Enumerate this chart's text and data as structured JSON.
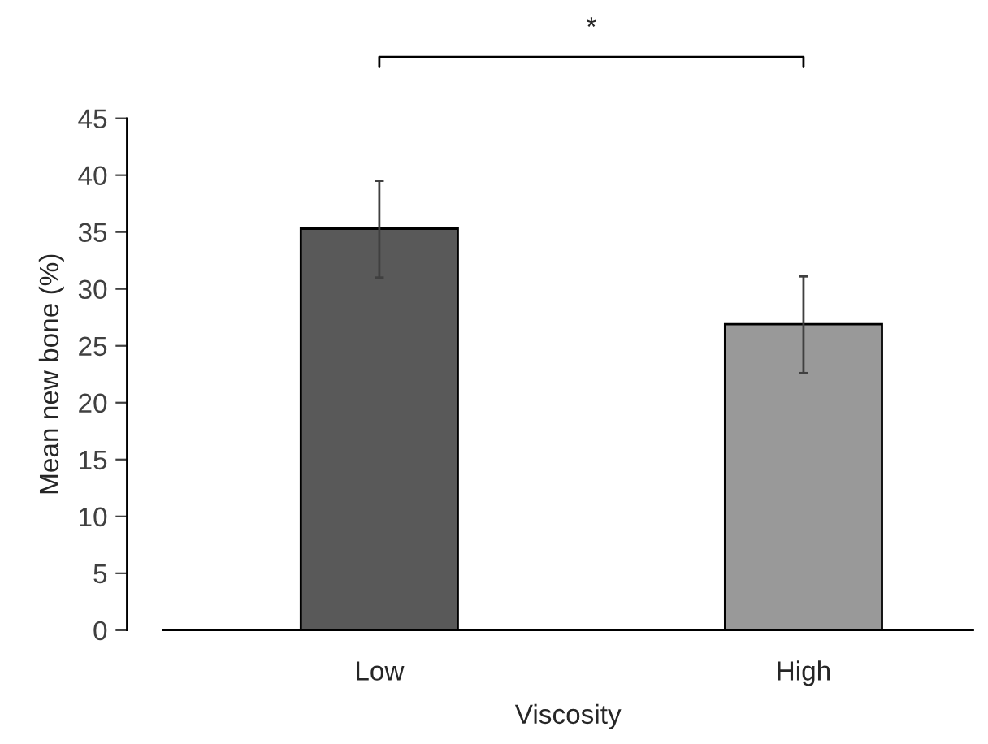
{
  "chart_data": {
    "type": "bar",
    "xlabel": "Viscosity",
    "ylabel": "Mean new bone (%)",
    "categories": [
      "Low",
      "High"
    ],
    "series": [
      {
        "values": [
          35.3,
          26.9
        ],
        "errors": [
          [
            31.0,
            39.5
          ],
          [
            22.6,
            31.1
          ]
        ],
        "colors": [
          "#595959",
          "#999999"
        ]
      }
    ],
    "ylim": [
      0,
      45
    ],
    "yticks": [
      0,
      5,
      10,
      15,
      20,
      25,
      30,
      35,
      40,
      45
    ],
    "grid": false,
    "legend": false,
    "annotations": [
      {
        "text": "*"
      }
    ]
  }
}
